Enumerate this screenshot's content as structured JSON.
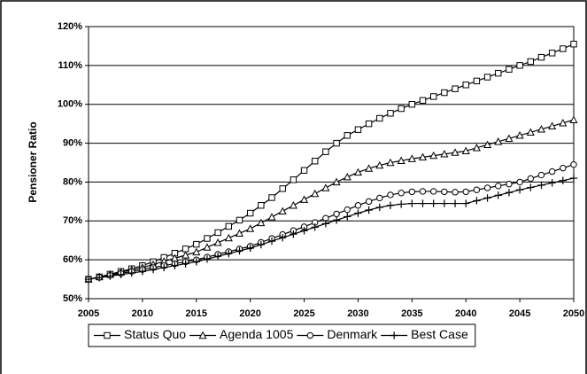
{
  "chart_data": {
    "type": "line",
    "y_label": "Pensioner Ratio",
    "x": [
      2005,
      2006,
      2007,
      2008,
      2009,
      2010,
      2011,
      2012,
      2013,
      2014,
      2015,
      2016,
      2017,
      2018,
      2019,
      2020,
      2021,
      2022,
      2023,
      2024,
      2025,
      2026,
      2027,
      2028,
      2029,
      2030,
      2031,
      2032,
      2033,
      2034,
      2035,
      2036,
      2037,
      2038,
      2039,
      2040,
      2041,
      2042,
      2043,
      2044,
      2045,
      2046,
      2047,
      2048,
      2049,
      2050
    ],
    "series": [
      {
        "name": "Status Quo",
        "color": "#000000",
        "marker": "square",
        "values": [
          55,
          55.6,
          56.3,
          57,
          57.7,
          58.5,
          59.5,
          60.6,
          61.7,
          62.8,
          64,
          65.5,
          67,
          68.6,
          70.2,
          72,
          74,
          76,
          78.3,
          80.6,
          83,
          85.4,
          87.8,
          90,
          92,
          93.5,
          95,
          96.4,
          97.7,
          98.9,
          100,
          101,
          102,
          103,
          104,
          105,
          106,
          107,
          108,
          109,
          110,
          111,
          112.1,
          113.2,
          114.3,
          115.5
        ]
      },
      {
        "name": "Agenda 1005",
        "color": "#000000",
        "marker": "triangle",
        "values": [
          55,
          55.6,
          56.2,
          56.8,
          57.4,
          58,
          58.8,
          59.6,
          60.4,
          61.2,
          62,
          63.2,
          64.4,
          65.6,
          66.8,
          68,
          69.5,
          71,
          72.5,
          74,
          75.5,
          77,
          78.5,
          80,
          81.3,
          82.5,
          83.5,
          84.3,
          85,
          85.5,
          86,
          86.4,
          86.8,
          87.2,
          87.6,
          88,
          88.8,
          89.6,
          90.4,
          91.2,
          92,
          92.8,
          93.6,
          94.4,
          95.2,
          96
        ]
      },
      {
        "name": "Denmark",
        "color": "#000000",
        "marker": "circle",
        "values": [
          55,
          55.5,
          56,
          56.5,
          57,
          57.5,
          58,
          58.5,
          59,
          59.5,
          60,
          60.7,
          61.4,
          62.1,
          62.8,
          63.5,
          64.5,
          65.5,
          66.5,
          67.5,
          68.5,
          69.6,
          70.7,
          71.8,
          72.9,
          74,
          75,
          75.9,
          76.7,
          77.2,
          77.5,
          77.6,
          77.6,
          77.5,
          77.4,
          77.5,
          78,
          78.5,
          79,
          79.5,
          80,
          80.9,
          81.8,
          82.7,
          83.6,
          84.5
        ]
      },
      {
        "name": "Best Case",
        "color": "#000000",
        "marker": "plus",
        "values": [
          55,
          55.4,
          55.8,
          56.2,
          56.6,
          57,
          57.5,
          58,
          58.5,
          59,
          59.5,
          60.2,
          60.9,
          61.6,
          62.3,
          63,
          63.9,
          64.8,
          65.7,
          66.6,
          67.5,
          68.4,
          69.3,
          70.2,
          71.1,
          72,
          72.8,
          73.5,
          74,
          74.3,
          74.5,
          74.5,
          74.5,
          74.5,
          74.5,
          74.5,
          75.2,
          75.9,
          76.6,
          77.3,
          78,
          78.6,
          79.2,
          79.8,
          80.4,
          81
        ]
      }
    ],
    "xlim": [
      2005,
      2050
    ],
    "xticks": [
      2005,
      2010,
      2015,
      2020,
      2025,
      2030,
      2035,
      2040,
      2045,
      2050
    ],
    "ylim": [
      50,
      120
    ],
    "yticks": [
      {
        "value": 50,
        "label": "50%"
      },
      {
        "value": 60,
        "label": "60%"
      },
      {
        "value": 70,
        "label": "70%"
      },
      {
        "value": 80,
        "label": "80%"
      },
      {
        "value": 90,
        "label": "90%"
      },
      {
        "value": 100,
        "label": "100%"
      },
      {
        "value": 110,
        "label": "110%"
      },
      {
        "value": 120,
        "label": "120%"
      }
    ],
    "grid": true,
    "legend": "bottom"
  }
}
